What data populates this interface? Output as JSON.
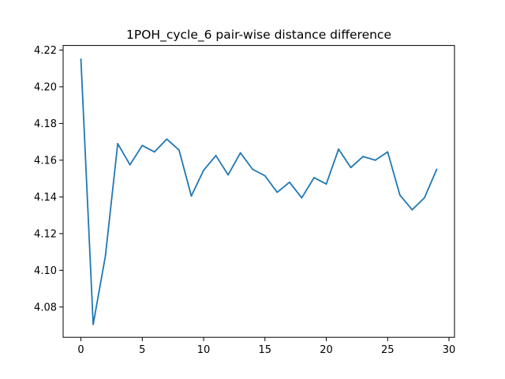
{
  "chart_data": {
    "type": "line",
    "title": "1POH_cycle_6 pair-wise distance difference",
    "xlabel": "",
    "ylabel": "",
    "xlim": [
      -1.45,
      30.45
    ],
    "ylim": [
      4.0635,
      4.2225
    ],
    "x_ticks": [
      0,
      5,
      10,
      15,
      20,
      25,
      30
    ],
    "x_tick_labels": [
      "0",
      "5",
      "10",
      "15",
      "20",
      "25",
      "30"
    ],
    "y_ticks": [
      4.08,
      4.1,
      4.12,
      4.14,
      4.16,
      4.18,
      4.2,
      4.22
    ],
    "y_tick_labels": [
      "4.08",
      "4.10",
      "4.12",
      "4.14",
      "4.16",
      "4.18",
      "4.20",
      "4.22"
    ],
    "grid": false,
    "legend": "none",
    "series": [
      {
        "color": "#1f77b4",
        "x": [
          0,
          1,
          2,
          3,
          4,
          5,
          6,
          7,
          8,
          9,
          10,
          11,
          12,
          13,
          14,
          15,
          16,
          17,
          18,
          19,
          20,
          21,
          22,
          23,
          24,
          25,
          26,
          27,
          28,
          29
        ],
        "values": [
          4.215,
          4.0705,
          4.108,
          4.169,
          4.1575,
          4.168,
          4.1645,
          4.1715,
          4.1655,
          4.1405,
          4.1545,
          4.1625,
          4.152,
          4.164,
          4.155,
          4.1515,
          4.1425,
          4.148,
          4.1395,
          4.1505,
          4.147,
          4.166,
          4.156,
          4.162,
          4.16,
          4.1645,
          4.141,
          4.133,
          4.1395,
          4.155
        ]
      }
    ]
  }
}
